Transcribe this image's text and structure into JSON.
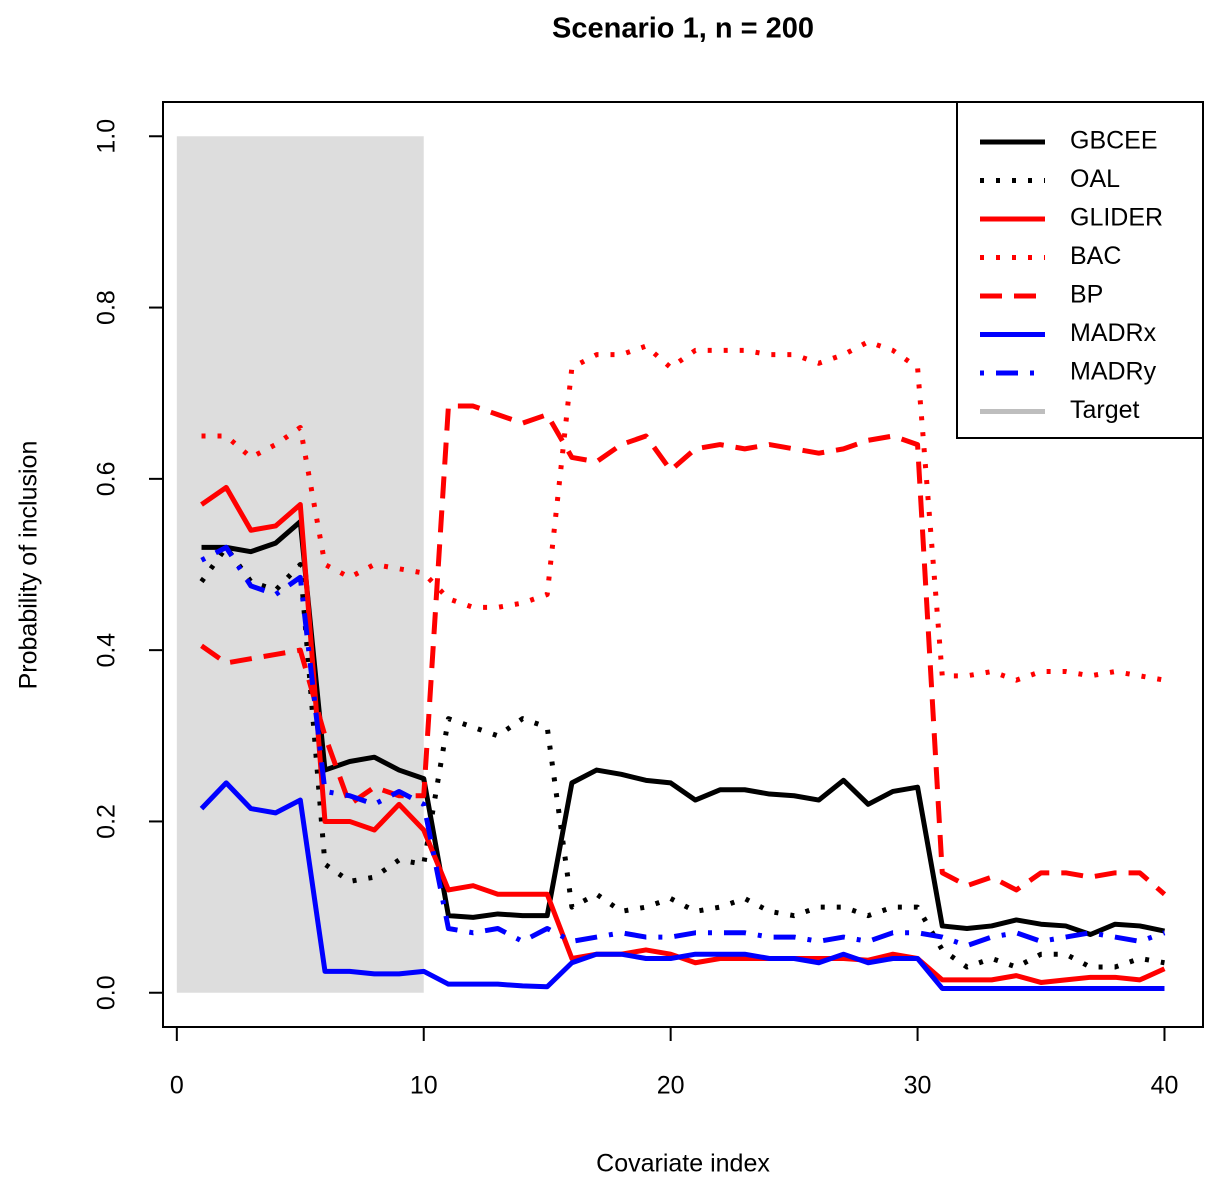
{
  "chart_data": {
    "type": "line",
    "title": "Scenario 1, n = 200",
    "xlabel": "Covariate index",
    "ylabel": "Probability of inclusion",
    "x": [
      1,
      2,
      3,
      4,
      5,
      6,
      7,
      8,
      9,
      10,
      11,
      12,
      13,
      14,
      15,
      16,
      17,
      18,
      19,
      20,
      21,
      22,
      23,
      24,
      25,
      26,
      27,
      28,
      29,
      30,
      31,
      32,
      33,
      34,
      35,
      36,
      37,
      38,
      39,
      40
    ],
    "series": [
      {
        "name": "GBCEE",
        "color": "#000000",
        "linestyle": "solid",
        "values": [
          0.52,
          0.52,
          0.515,
          0.525,
          0.55,
          0.26,
          0.27,
          0.275,
          0.26,
          0.25,
          0.09,
          0.088,
          0.092,
          0.09,
          0.09,
          0.245,
          0.26,
          0.255,
          0.248,
          0.245,
          0.225,
          0.237,
          0.237,
          0.232,
          0.23,
          0.225,
          0.248,
          0.22,
          0.235,
          0.24,
          0.078,
          0.075,
          0.078,
          0.085,
          0.08,
          0.078,
          0.068,
          0.08,
          0.078,
          0.072
        ]
      },
      {
        "name": "OAL",
        "color": "#000000",
        "linestyle": "dotted",
        "values": [
          0.48,
          0.52,
          0.48,
          0.47,
          0.5,
          0.15,
          0.13,
          0.135,
          0.155,
          0.15,
          0.32,
          0.31,
          0.3,
          0.32,
          0.31,
          0.1,
          0.115,
          0.095,
          0.1,
          0.11,
          0.095,
          0.1,
          0.11,
          0.095,
          0.09,
          0.1,
          0.1,
          0.09,
          0.1,
          0.1,
          0.05,
          0.03,
          0.04,
          0.03,
          0.045,
          0.045,
          0.03,
          0.03,
          0.04,
          0.035
        ]
      },
      {
        "name": "GLIDER",
        "color": "#ff0000",
        "linestyle": "solid",
        "values": [
          0.57,
          0.59,
          0.54,
          0.545,
          0.57,
          0.2,
          0.2,
          0.19,
          0.22,
          0.19,
          0.12,
          0.125,
          0.115,
          0.115,
          0.115,
          0.04,
          0.045,
          0.045,
          0.05,
          0.045,
          0.035,
          0.04,
          0.04,
          0.04,
          0.04,
          0.04,
          0.04,
          0.038,
          0.045,
          0.04,
          0.015,
          0.015,
          0.015,
          0.02,
          0.012,
          0.015,
          0.018,
          0.018,
          0.015,
          0.028
        ]
      },
      {
        "name": "BAC",
        "color": "#ff0000",
        "linestyle": "dotted",
        "values": [
          0.65,
          0.65,
          0.625,
          0.64,
          0.66,
          0.5,
          0.485,
          0.5,
          0.495,
          0.49,
          0.46,
          0.45,
          0.45,
          0.455,
          0.465,
          0.73,
          0.745,
          0.745,
          0.755,
          0.73,
          0.75,
          0.75,
          0.75,
          0.745,
          0.745,
          0.735,
          0.745,
          0.76,
          0.75,
          0.73,
          0.37,
          0.37,
          0.375,
          0.365,
          0.375,
          0.375,
          0.37,
          0.375,
          0.37,
          0.365
        ]
      },
      {
        "name": "BP",
        "color": "#ff0000",
        "linestyle": "dashed",
        "values": [
          0.405,
          0.385,
          0.39,
          0.395,
          0.4,
          0.3,
          0.22,
          0.24,
          0.23,
          0.23,
          0.685,
          0.685,
          0.675,
          0.665,
          0.675,
          0.625,
          0.62,
          0.64,
          0.65,
          0.61,
          0.635,
          0.64,
          0.635,
          0.64,
          0.635,
          0.63,
          0.635,
          0.645,
          0.65,
          0.64,
          0.14,
          0.125,
          0.135,
          0.12,
          0.14,
          0.14,
          0.135,
          0.14,
          0.14,
          0.115
        ]
      },
      {
        "name": "MADRx",
        "color": "#0000ff",
        "linestyle": "solid",
        "values": [
          0.215,
          0.245,
          0.215,
          0.21,
          0.225,
          0.025,
          0.025,
          0.022,
          0.022,
          0.025,
          0.01,
          0.01,
          0.01,
          0.008,
          0.007,
          0.035,
          0.045,
          0.045,
          0.04,
          0.04,
          0.045,
          0.045,
          0.045,
          0.04,
          0.04,
          0.035,
          0.045,
          0.035,
          0.04,
          0.04,
          0.005,
          0.005,
          0.005,
          0.005,
          0.005,
          0.005,
          0.005,
          0.005,
          0.005,
          0.005
        ]
      },
      {
        "name": "MADRy",
        "color": "#0000ff",
        "linestyle": "dotdash",
        "values": [
          0.505,
          0.52,
          0.475,
          0.465,
          0.485,
          0.235,
          0.23,
          0.22,
          0.235,
          0.22,
          0.075,
          0.07,
          0.075,
          0.06,
          0.075,
          0.06,
          0.065,
          0.07,
          0.065,
          0.065,
          0.07,
          0.07,
          0.07,
          0.065,
          0.065,
          0.06,
          0.065,
          0.06,
          0.07,
          0.07,
          0.065,
          0.055,
          0.065,
          0.07,
          0.06,
          0.065,
          0.07,
          0.065,
          0.06,
          0.07
        ]
      }
    ],
    "target": {
      "name": "Target",
      "color": "#bebebe",
      "fill": "#dddddd",
      "xrange": [
        0,
        10
      ],
      "yrange": [
        0,
        1
      ]
    },
    "xlim": [
      -0.56,
      41.56
    ],
    "ylim": [
      -0.04,
      1.04
    ],
    "xticks": [
      0,
      10,
      20,
      30,
      40
    ],
    "yticks": [
      {
        "value": 0,
        "label": "0.0"
      },
      {
        "value": 0.2,
        "label": "0.2"
      },
      {
        "value": 0.4,
        "label": "0.4"
      },
      {
        "value": 0.6,
        "label": "0.6"
      },
      {
        "value": 0.8,
        "label": "0.8"
      },
      {
        "value": 1,
        "label": "1.0"
      }
    ],
    "legend": "top right"
  }
}
